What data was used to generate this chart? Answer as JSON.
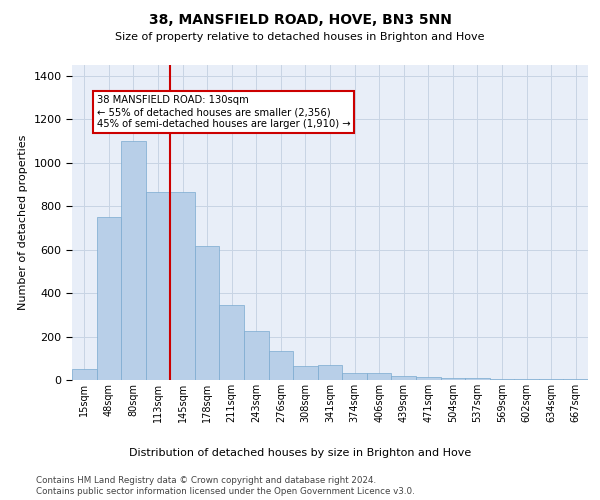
{
  "title": "38, MANSFIELD ROAD, HOVE, BN3 5NN",
  "subtitle": "Size of property relative to detached houses in Brighton and Hove",
  "xlabel": "Distribution of detached houses by size in Brighton and Hove",
  "ylabel": "Number of detached properties",
  "footnote1": "Contains HM Land Registry data © Crown copyright and database right 2024.",
  "footnote2": "Contains public sector information licensed under the Open Government Licence v3.0.",
  "bar_color": "#b8cfe8",
  "bar_edge_color": "#7aaad0",
  "grid_color": "#c8d4e4",
  "background_color": "#e8eef8",
  "vline_color": "#cc0000",
  "annotation_box_color": "#cc0000",
  "annotation_text": "38 MANSFIELD ROAD: 130sqm\n← 55% of detached houses are smaller (2,356)\n45% of semi-detached houses are larger (1,910) →",
  "vline_x_index": 3.5,
  "categories": [
    "15sqm",
    "48sqm",
    "80sqm",
    "113sqm",
    "145sqm",
    "178sqm",
    "211sqm",
    "243sqm",
    "276sqm",
    "308sqm",
    "341sqm",
    "374sqm",
    "406sqm",
    "439sqm",
    "471sqm",
    "504sqm",
    "537sqm",
    "569sqm",
    "602sqm",
    "634sqm",
    "667sqm"
  ],
  "values": [
    50,
    750,
    1100,
    865,
    865,
    615,
    345,
    225,
    135,
    65,
    70,
    30,
    30,
    20,
    15,
    10,
    10,
    5,
    5,
    5,
    5
  ],
  "ylim": [
    0,
    1450
  ],
  "yticks": [
    0,
    200,
    400,
    600,
    800,
    1000,
    1200,
    1400
  ]
}
